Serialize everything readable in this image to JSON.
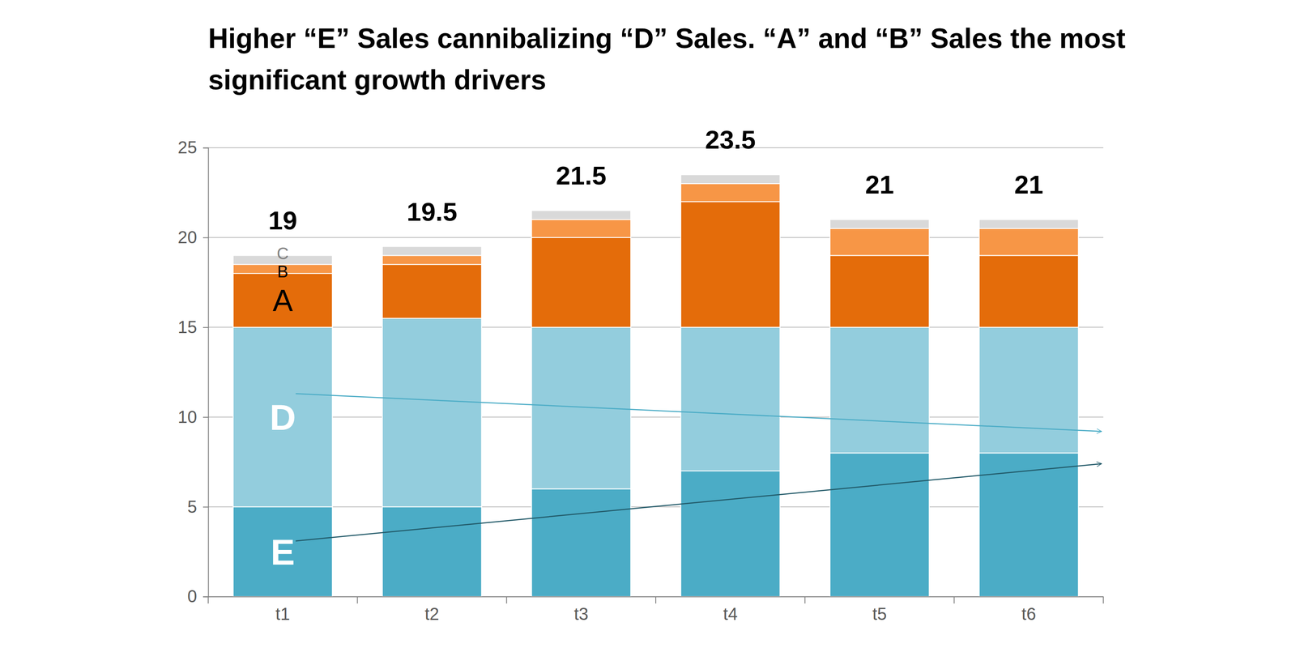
{
  "chart_data": {
    "type": "bar",
    "stacked": true,
    "grid": true,
    "title": "Higher “E” Sales cannibalizing “D” Sales. “A” and “B” Sales the most significant growth drivers",
    "categories": [
      "t1",
      "t2",
      "t3",
      "t4",
      "t5",
      "t6"
    ],
    "series": [
      {
        "name": "E",
        "color": "#4BACC6",
        "values": [
          5,
          5,
          6,
          7,
          8,
          8
        ]
      },
      {
        "name": "D",
        "color": "#93CDDD",
        "values": [
          10,
          10.5,
          9,
          8,
          7,
          7
        ]
      },
      {
        "name": "A",
        "color": "#E46C0A",
        "values": [
          3,
          3,
          5,
          7,
          4,
          4
        ]
      },
      {
        "name": "B",
        "color": "#F79646",
        "values": [
          0.5,
          0.5,
          1,
          1,
          1.5,
          1.5
        ]
      },
      {
        "name": "C",
        "color": "#D9D9D9",
        "values": [
          0.5,
          0.5,
          0.5,
          0.5,
          0.5,
          0.5
        ]
      }
    ],
    "totals": [
      19,
      19.5,
      21.5,
      23.5,
      21,
      21
    ],
    "ylim": [
      0,
      25
    ],
    "yticks": [
      0,
      5,
      10,
      15,
      20,
      25
    ]
  }
}
